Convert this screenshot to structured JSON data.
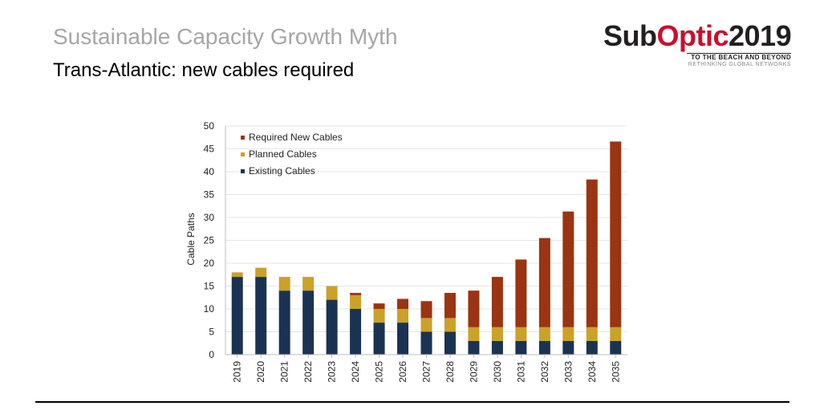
{
  "slide": {
    "title": "Sustainable Capacity Growth Myth",
    "subtitle": "Trans-Atlantic: new cables required"
  },
  "logo": {
    "name_prefix": "Sub",
    "name_accent": "Optic",
    "name_year": "2019",
    "tagline": "TO THE BEACH AND BEYOND",
    "subtagline": "RETHINKING GLOBAL NETWORKS",
    "colors": {
      "text": "#231f20",
      "accent": "#c8102e"
    }
  },
  "chart_data": {
    "type": "bar",
    "stacked": true,
    "ylabel": "Cable Paths",
    "xlabel": "",
    "ylim": [
      0,
      50
    ],
    "yticks": [
      0,
      5,
      10,
      15,
      20,
      25,
      30,
      35,
      40,
      45,
      50
    ],
    "grid": true,
    "legend_position": "top-left",
    "categories": [
      "2019",
      "2020",
      "2021",
      "2022",
      "2023",
      "2024",
      "2025",
      "2026",
      "2027",
      "2028",
      "2029",
      "2030",
      "2031",
      "2032",
      "2033",
      "2034",
      "2035"
    ],
    "series": [
      {
        "name": "Existing Cables",
        "color": "#1b3352",
        "values": [
          17,
          17,
          14,
          14,
          12,
          10,
          7,
          7,
          5,
          5,
          3,
          3,
          3,
          3,
          3,
          3,
          3
        ]
      },
      {
        "name": "Planned Cables",
        "color": "#c9a227",
        "values": [
          1,
          2,
          3,
          3,
          3,
          3,
          3,
          3,
          3,
          3,
          3,
          3,
          3,
          3,
          3,
          3,
          3
        ]
      },
      {
        "name": "Required New Cables",
        "color": "#9a3412",
        "values": [
          0,
          0,
          0,
          0,
          0,
          0.5,
          1.2,
          2.2,
          3.7,
          5.5,
          8,
          11,
          14.8,
          19.5,
          25.3,
          32.3,
          40.6
        ]
      }
    ],
    "legend_order": [
      "Required New Cables",
      "Planned Cables",
      "Existing Cables"
    ]
  }
}
